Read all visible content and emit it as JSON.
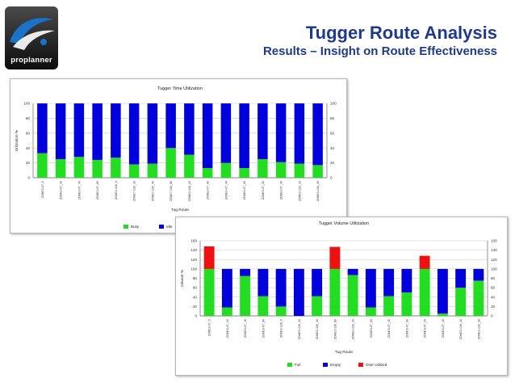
{
  "slide": {
    "title": "Tugger Route Analysis",
    "subtitle": "Results – Insight on Route Effectiveness",
    "logo_text": "proplanner",
    "logo_colors": [
      "#1a73c8",
      "#ffffff",
      "#2b2b2b"
    ]
  },
  "colors": {
    "busy": "#22dd22",
    "idle": "#0000dd",
    "full": "#22dd22",
    "empty": "#0000dd",
    "over": "#ee1111",
    "title_text": "#1f3a8a"
  },
  "chart_data": [
    {
      "type": "bar",
      "stacked": true,
      "title": "Tugger Time Utilization",
      "xlabel": "Tug Route",
      "ylabel": "Utilization %",
      "ylim": [
        0,
        100
      ],
      "yticks": [
        0,
        20,
        40,
        60,
        80,
        100
      ],
      "right_axis": true,
      "grid": true,
      "legend_position": "bottom",
      "categories": [
        "ZONE3-07_0",
        "ZONE3-07_10",
        "ZONE3-07_40",
        "ZONE3-07_80",
        "ZONE3-136_0",
        "ZONE7-136_10",
        "ZONE7-136_40",
        "ZONE7-136_80",
        "ZONE3-136_20",
        "ZONE3-07_00",
        "ZONE3-07_40",
        "ZONE3-07_00",
        "ZONE3-07_20",
        "ZONE3-07_40",
        "ZONE3-136_10",
        "ZONE3-136_30"
      ],
      "series": [
        {
          "name": "Busy",
          "values": [
            33,
            25,
            28,
            24,
            27,
            18,
            19,
            40,
            31,
            13,
            20,
            13,
            25,
            21,
            19,
            17
          ]
        },
        {
          "name": "Idle",
          "values": [
            67,
            75,
            72,
            76,
            73,
            82,
            81,
            60,
            69,
            87,
            80,
            87,
            75,
            79,
            81,
            83
          ]
        }
      ]
    },
    {
      "type": "bar",
      "stacked": true,
      "title": "Tugger Volume Utilization",
      "xlabel": "Tug Route",
      "ylabel": "Volume %",
      "ylim": [
        0,
        160
      ],
      "yticks": [
        0,
        20,
        40,
        60,
        80,
        100,
        120,
        140,
        160
      ],
      "right_axis": true,
      "grid": true,
      "legend_position": "bottom",
      "categories": [
        "ZONE3-07_0",
        "ZONE3-07_10",
        "ZONE3-07_40",
        "ZONE3-07_80",
        "ZONE3-136_0",
        "ZONE3-136_10",
        "ZONE3-136_40",
        "ZONE3-136_80",
        "ZONE3-136_20",
        "ZONE3-07_00",
        "ZONE3-07_40",
        "ZONE3-07_00",
        "ZONE3-07_20",
        "ZONE3-07_40",
        "ZONE3-136_10",
        "ZONE3-136_30"
      ],
      "series": [
        {
          "name": "Full",
          "values": [
            100,
            18,
            85,
            42,
            20,
            0,
            42,
            100,
            87,
            18,
            42,
            50,
            100,
            5,
            60,
            75
          ]
        },
        {
          "name": "Empty",
          "values": [
            0,
            82,
            15,
            58,
            80,
            100,
            58,
            0,
            13,
            82,
            58,
            50,
            0,
            95,
            40,
            25
          ]
        },
        {
          "name": "Over Utilized",
          "values": [
            48,
            0,
            0,
            0,
            0,
            0,
            0,
            47,
            0,
            0,
            0,
            0,
            28,
            0,
            0,
            0
          ]
        }
      ]
    }
  ]
}
